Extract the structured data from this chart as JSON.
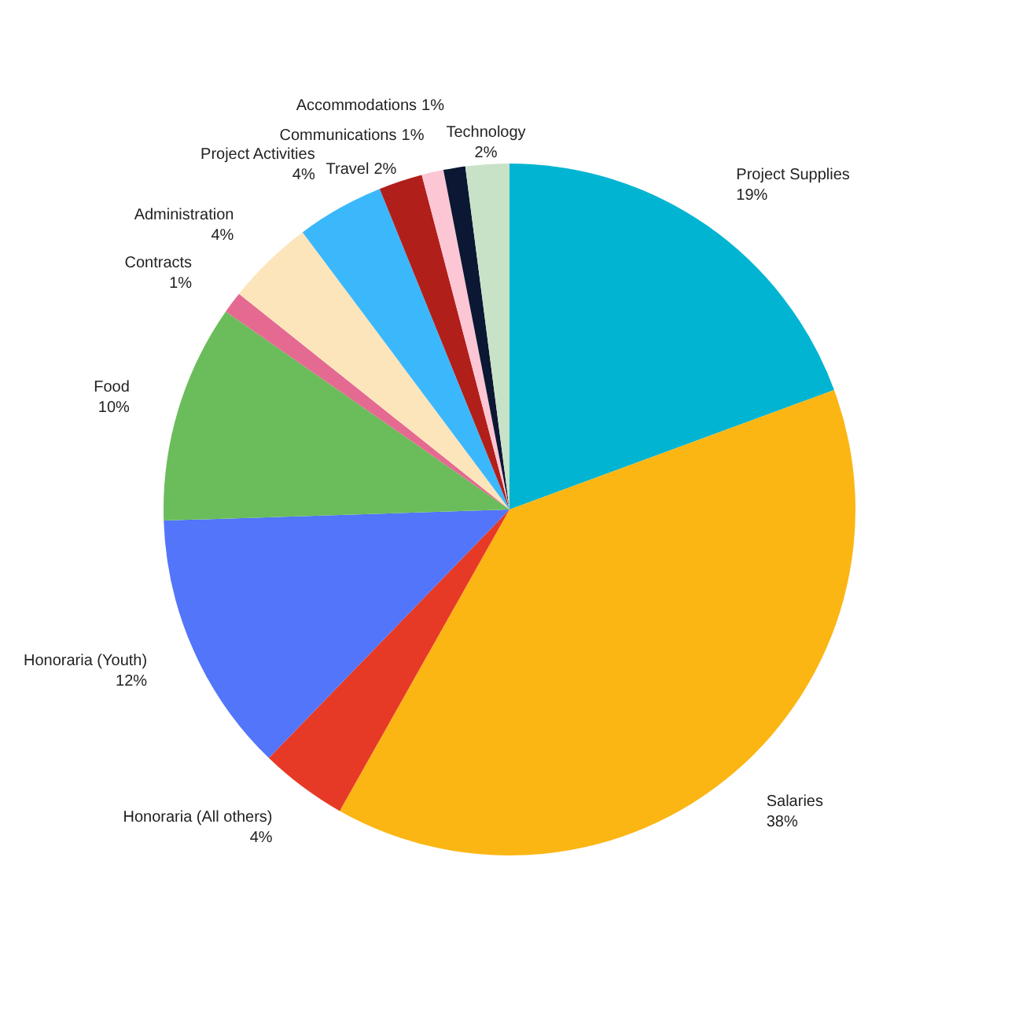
{
  "chart_data": {
    "type": "pie",
    "categories": [
      "Project Supplies",
      "Salaries",
      "Honoraria (All others)",
      "Honoraria (Youth)",
      "Food",
      "Contracts",
      "Administration",
      "Project Activities",
      "Travel",
      "Communications",
      "Accommodations",
      "Technology"
    ],
    "values": [
      19,
      38,
      4,
      12,
      10,
      1,
      4,
      4,
      2,
      1,
      1,
      2
    ],
    "value_labels": [
      "19%",
      "38%",
      "4%",
      "12%",
      "10%",
      "1%",
      "4%",
      "4%",
      "2%",
      "1%",
      "1%",
      "2%"
    ],
    "colors": [
      "#00b4d2",
      "#fbb614",
      "#e63a26",
      "#5275f9",
      "#6abd5a",
      "#e46a91",
      "#fde5bb",
      "#3bb8fb",
      "#b11f1a",
      "#fdc6d4",
      "#0c1733",
      "#c8e2c8"
    ],
    "legend": false
  }
}
